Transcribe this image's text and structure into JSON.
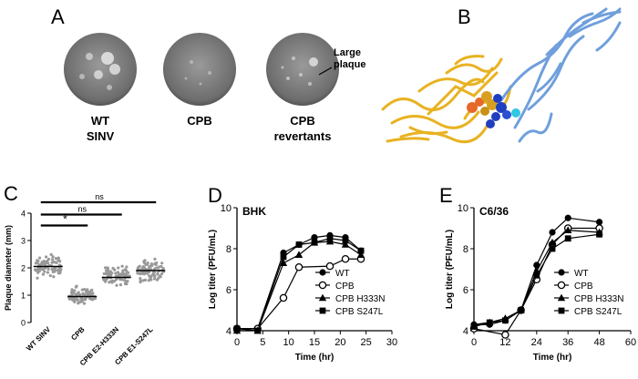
{
  "panels": {
    "A": {
      "letter": "A",
      "plates": [
        {
          "label_lines": [
            "WT",
            "SINV"
          ]
        },
        {
          "label_lines": [
            "CPB"
          ]
        },
        {
          "label_lines": [
            "CPB",
            "revertants"
          ]
        }
      ],
      "annotation_lines": [
        "Large",
        "plaque"
      ]
    },
    "B": {
      "letter": "B"
    },
    "C": {
      "letter": "C"
    },
    "D": {
      "letter": "D"
    },
    "E": {
      "letter": "E"
    }
  },
  "colors": {
    "protein_gold": "#e8b222",
    "protein_blue": "#6f9fdc",
    "sphere_orange": "#e8682a",
    "sphere_darkblue": "#1f3fc0",
    "sphere_cyan": "#2fc8e0",
    "plate_gray": "#8a8a8a"
  },
  "chart_data": [
    {
      "id": "C",
      "type": "scatter",
      "ylabel": "Plaque diameter (mm)",
      "ylim": [
        0,
        4
      ],
      "yticks": [
        0,
        1,
        2,
        3,
        4
      ],
      "categories": [
        "WT SINV",
        "CPB",
        "CPB E2-H333N",
        "CPB E1-S247L"
      ],
      "medians": [
        2.05,
        0.95,
        1.65,
        1.9
      ],
      "spreads": [
        [
          1.0,
          3.3
        ],
        [
          0.3,
          1.9
        ],
        [
          0.8,
          2.8
        ],
        [
          0.9,
          3.0
        ]
      ],
      "significance": [
        {
          "label": "*",
          "from": 0,
          "to": 1
        },
        {
          "label": "ns",
          "from": 0,
          "to": 2
        },
        {
          "label": "ns",
          "from": 0,
          "to": 3
        }
      ]
    },
    {
      "id": "D",
      "type": "line",
      "title": "BHK",
      "xlabel": "Time (hr)",
      "ylabel": "Log titer (PFU/mL)",
      "xlim": [
        0,
        30
      ],
      "ylim": [
        4,
        10
      ],
      "xticks": [
        0,
        5,
        10,
        15,
        20,
        25,
        30
      ],
      "yticks": [
        4,
        6,
        8,
        10
      ],
      "legend_position": "bottom-right",
      "series": [
        {
          "name": "WT",
          "marker": "circle-filled",
          "x": [
            0,
            4,
            9,
            12,
            15,
            18,
            21,
            24
          ],
          "y": [
            4.1,
            4.1,
            7.8,
            8.2,
            8.55,
            8.65,
            8.55,
            7.9
          ]
        },
        {
          "name": "CPB",
          "marker": "circle-open",
          "x": [
            0,
            4,
            9,
            12,
            18,
            21,
            24
          ],
          "y": [
            4.1,
            4.1,
            5.6,
            7.1,
            7.15,
            7.5,
            7.5
          ]
        },
        {
          "name": "CPB H333N",
          "marker": "triangle",
          "x": [
            0,
            4,
            9,
            12,
            15,
            18,
            21,
            24
          ],
          "y": [
            4.0,
            4.0,
            7.3,
            7.7,
            8.3,
            8.35,
            8.2,
            7.7
          ]
        },
        {
          "name": "CPB S247L",
          "marker": "square",
          "x": [
            0,
            4,
            9,
            12,
            15,
            18,
            21,
            24
          ],
          "y": [
            4.1,
            4.0,
            7.6,
            8.2,
            8.3,
            8.5,
            8.4,
            7.9
          ]
        }
      ]
    },
    {
      "id": "E",
      "type": "line",
      "title": "C6/36",
      "xlabel": "Time (hr)",
      "ylabel": "Log titer (PFU/mL)",
      "xlim": [
        0,
        60
      ],
      "ylim": [
        4,
        10
      ],
      "xticks": [
        0,
        12,
        24,
        36,
        48,
        60
      ],
      "yticks": [
        4,
        6,
        8,
        10
      ],
      "legend_position": "bottom-right",
      "series": [
        {
          "name": "WT",
          "marker": "circle-filled",
          "x": [
            0,
            6,
            12,
            18,
            24,
            30,
            36,
            48
          ],
          "y": [
            4.3,
            4.3,
            4.5,
            5.0,
            7.2,
            8.8,
            9.5,
            9.3
          ]
        },
        {
          "name": "CPB",
          "marker": "circle-open",
          "x": [
            0,
            12,
            18,
            24,
            30,
            36,
            48
          ],
          "y": [
            4.1,
            3.8,
            5.0,
            6.5,
            8.2,
            9.0,
            9.0
          ]
        },
        {
          "name": "CPB H333N",
          "marker": "triangle",
          "x": [
            0,
            6,
            12,
            18,
            24,
            30,
            36,
            48
          ],
          "y": [
            4.3,
            4.4,
            4.6,
            5.0,
            6.9,
            8.3,
            8.9,
            8.8
          ]
        },
        {
          "name": "CPB S247L",
          "marker": "square",
          "x": [
            0,
            6,
            12,
            18,
            24,
            30,
            36,
            48
          ],
          "y": [
            4.2,
            4.4,
            4.5,
            5.0,
            6.7,
            8.0,
            8.5,
            8.7
          ]
        }
      ]
    }
  ]
}
